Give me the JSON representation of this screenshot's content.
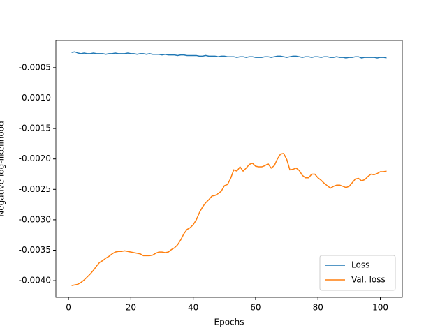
{
  "chart_data": {
    "type": "line",
    "xlabel": "Epochs",
    "ylabel": "Negative log-likelihood",
    "x": [
      1,
      2,
      3,
      4,
      5,
      6,
      7,
      8,
      9,
      10,
      11,
      12,
      13,
      14,
      15,
      16,
      17,
      18,
      19,
      20,
      21,
      22,
      23,
      24,
      25,
      26,
      27,
      28,
      29,
      30,
      31,
      32,
      33,
      34,
      35,
      36,
      37,
      38,
      39,
      40,
      41,
      42,
      43,
      44,
      45,
      46,
      47,
      48,
      49,
      50,
      51,
      52,
      53,
      54,
      55,
      56,
      57,
      58,
      59,
      60,
      61,
      62,
      63,
      64,
      65,
      66,
      67,
      68,
      69,
      70,
      71,
      72,
      73,
      74,
      75,
      76,
      77,
      78,
      79,
      80,
      81,
      82,
      83,
      84,
      85,
      86,
      87,
      88,
      89,
      90,
      91,
      92,
      93,
      94,
      95,
      96,
      97,
      98,
      99,
      100,
      101,
      102
    ],
    "series": [
      {
        "name": "Loss",
        "color": "#1f77b4",
        "values": [
          -0.00025,
          -0.00024,
          -0.00026,
          -0.00027,
          -0.00026,
          -0.00027,
          -0.00027,
          -0.00026,
          -0.00027,
          -0.00027,
          -0.00027,
          -0.00028,
          -0.00027,
          -0.00027,
          -0.00026,
          -0.00027,
          -0.00027,
          -0.00027,
          -0.00026,
          -0.00027,
          -0.00027,
          -0.00028,
          -0.00027,
          -0.00027,
          -0.00028,
          -0.00027,
          -0.00028,
          -0.00028,
          -0.00028,
          -0.00029,
          -0.00028,
          -0.00029,
          -0.00029,
          -0.00029,
          -0.0003,
          -0.00029,
          -0.00029,
          -0.0003,
          -0.0003,
          -0.0003,
          -0.0003,
          -0.00031,
          -0.00031,
          -0.0003,
          -0.00031,
          -0.00031,
          -0.00031,
          -0.00032,
          -0.00031,
          -0.00031,
          -0.00032,
          -0.00032,
          -0.00032,
          -0.00033,
          -0.00032,
          -0.00032,
          -0.00033,
          -0.00032,
          -0.00032,
          -0.00033,
          -0.00033,
          -0.00033,
          -0.00032,
          -0.00032,
          -0.00033,
          -0.00032,
          -0.00031,
          -0.00031,
          -0.00032,
          -0.00033,
          -0.00032,
          -0.00031,
          -0.00031,
          -0.00032,
          -0.00033,
          -0.00032,
          -0.00032,
          -0.00033,
          -0.00032,
          -0.00032,
          -0.00033,
          -0.00032,
          -0.00032,
          -0.00033,
          -0.00033,
          -0.00032,
          -0.00033,
          -0.00033,
          -0.00034,
          -0.00033,
          -0.00033,
          -0.00032,
          -0.00032,
          -0.00034,
          -0.00033,
          -0.00033,
          -0.00033,
          -0.00033,
          -0.00034,
          -0.00033,
          -0.00033,
          -0.00034
        ]
      },
      {
        "name": "Val. loss",
        "color": "#ff7f0e",
        "values": [
          -0.00408,
          -0.00407,
          -0.00406,
          -0.00403,
          -0.00399,
          -0.00394,
          -0.00389,
          -0.00383,
          -0.00376,
          -0.0037,
          -0.00367,
          -0.00363,
          -0.0036,
          -0.00356,
          -0.00353,
          -0.00352,
          -0.00352,
          -0.00351,
          -0.00352,
          -0.00353,
          -0.00354,
          -0.00355,
          -0.00356,
          -0.00359,
          -0.00359,
          -0.00359,
          -0.00358,
          -0.00355,
          -0.00353,
          -0.00353,
          -0.00354,
          -0.00353,
          -0.00349,
          -0.00346,
          -0.00341,
          -0.00333,
          -0.00323,
          -0.00316,
          -0.00313,
          -0.00308,
          -0.003,
          -0.00288,
          -0.00279,
          -0.00272,
          -0.00267,
          -0.00261,
          -0.0026,
          -0.00257,
          -0.00253,
          -0.00244,
          -0.00242,
          -0.00232,
          -0.00218,
          -0.0022,
          -0.00213,
          -0.0022,
          -0.00215,
          -0.00209,
          -0.00207,
          -0.00212,
          -0.00213,
          -0.00213,
          -0.00211,
          -0.00208,
          -0.00215,
          -0.00211,
          -0.002,
          -0.00192,
          -0.00191,
          -0.00201,
          -0.00218,
          -0.00217,
          -0.00215,
          -0.00219,
          -0.00227,
          -0.00231,
          -0.00231,
          -0.00225,
          -0.00225,
          -0.00231,
          -0.00235,
          -0.0024,
          -0.00244,
          -0.00248,
          -0.00245,
          -0.00243,
          -0.00243,
          -0.00245,
          -0.00247,
          -0.00245,
          -0.00239,
          -0.00233,
          -0.00232,
          -0.00236,
          -0.00234,
          -0.00229,
          -0.00225,
          -0.00226,
          -0.00224,
          -0.00221,
          -0.00221,
          -0.0022
        ]
      }
    ],
    "xlim": [
      -4.05,
      107.05
    ],
    "xticks": [
      0,
      20,
      40,
      60,
      80,
      100
    ],
    "ylim": [
      -0.004274,
      -5.4e-05
    ],
    "yticks": [
      -0.0005,
      {
        "value": -0.001,
        "label": "-0.0010"
      },
      -0.0015,
      {
        "value": -0.002,
        "label": "-0.0020"
      },
      -0.0025,
      {
        "value": -0.003,
        "label": "-0.0030"
      },
      -0.0035,
      {
        "value": -0.004,
        "label": "-0.0040"
      }
    ],
    "legend": "lower right"
  }
}
